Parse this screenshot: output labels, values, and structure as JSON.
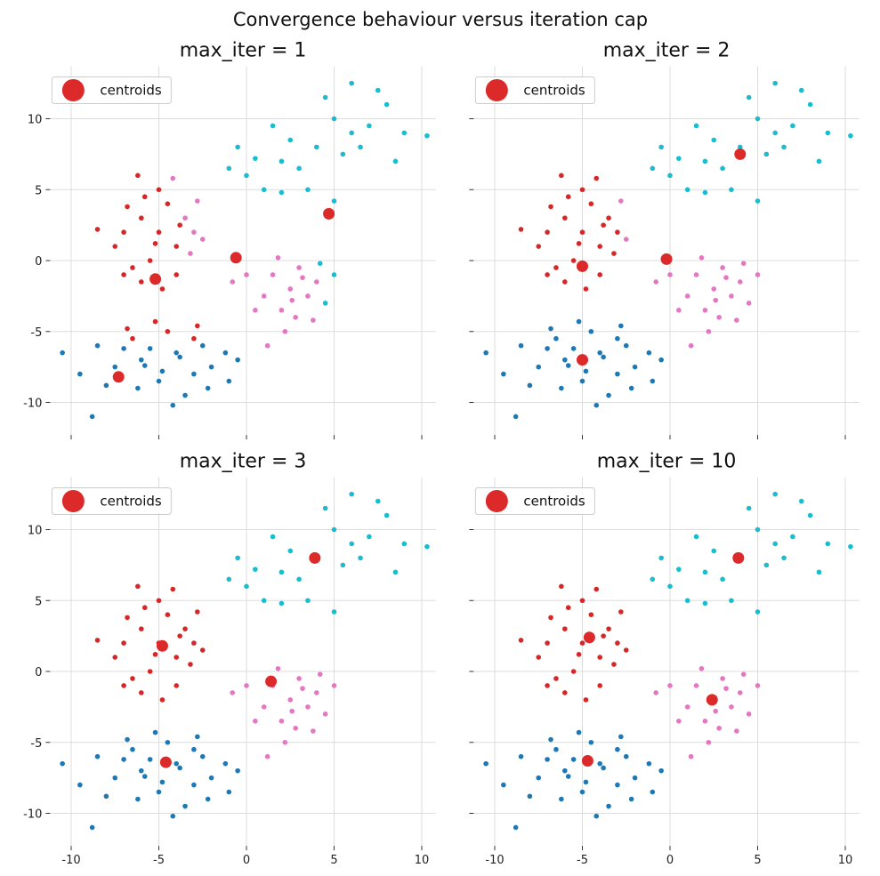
{
  "chart_data": {
    "type": "scatter",
    "title": "Convergence behaviour versus iteration cap",
    "xlim": [
      -11.2,
      10.8
    ],
    "ylim": [
      -12.3,
      13.7
    ],
    "xticks": [
      -10,
      -5,
      0,
      5,
      10
    ],
    "yticks": [
      -10,
      -5,
      0,
      5,
      10
    ],
    "grid": true,
    "legend_placement": "upper-left",
    "legend_label": "centroids",
    "colors": {
      "cluster": [
        "#1f77b4",
        "#d62728",
        "#e377c2",
        "#17becf"
      ],
      "centroid": "#dc2a2a",
      "grid": "#dddddd"
    },
    "points": [
      [
        -4,
        -6.5
      ],
      [
        -6,
        -7
      ],
      [
        -2.5,
        -6
      ],
      [
        -5,
        -8.5
      ],
      [
        -3,
        -8
      ],
      [
        -7.5,
        -7.5
      ],
      [
        -8.5,
        -6
      ],
      [
        -4.5,
        -5
      ],
      [
        -2,
        -7.5
      ],
      [
        -1.2,
        -6.5
      ],
      [
        -6.5,
        -5.5
      ],
      [
        -3.5,
        -9.5
      ],
      [
        -5.5,
        -6.2
      ],
      [
        -9.5,
        -8
      ],
      [
        -10.5,
        -6.5
      ],
      [
        -3,
        -5.5
      ],
      [
        -4.8,
        -7.8
      ],
      [
        -6.2,
        -9
      ],
      [
        -2.2,
        -9
      ],
      [
        -7,
        -6.2
      ],
      [
        -1,
        -8.5
      ],
      [
        -5.2,
        -4.3
      ],
      [
        -3.8,
        -6.8
      ],
      [
        -8,
        -8.8
      ],
      [
        -0.5,
        -7
      ],
      [
        -4.2,
        -10.2
      ],
      [
        -6.8,
        -4.8
      ],
      [
        -2.8,
        -4.6
      ],
      [
        -8.8,
        -11
      ],
      [
        -5.8,
        -7.4
      ],
      [
        -5,
        2
      ],
      [
        -6,
        3
      ],
      [
        -4,
        1
      ],
      [
        -5.5,
        0
      ],
      [
        -3.5,
        3
      ],
      [
        -7,
        2
      ],
      [
        -6.5,
        -0.5
      ],
      [
        -4.5,
        4
      ],
      [
        -5,
        5
      ],
      [
        -3,
        2
      ],
      [
        -7.5,
        1
      ],
      [
        -6,
        -1.5
      ],
      [
        -4,
        -1
      ],
      [
        -5.8,
        4.5
      ],
      [
        -3.2,
        0.5
      ],
      [
        -8.5,
        2.2
      ],
      [
        -4.8,
        -2
      ],
      [
        -6.2,
        6
      ],
      [
        -2.8,
        4.2
      ],
      [
        -5.2,
        1.2
      ],
      [
        -7,
        -1
      ],
      [
        -3.8,
        2.5
      ],
      [
        -4.2,
        5.8
      ],
      [
        -6.8,
        3.8
      ],
      [
        -2.5,
        1.5
      ],
      [
        2.5,
        -2
      ],
      [
        1.5,
        -1
      ],
      [
        3.5,
        -2.5
      ],
      [
        2,
        -3.5
      ],
      [
        3,
        -0.5
      ],
      [
        1,
        -2.5
      ],
      [
        4,
        -1.5
      ],
      [
        2.8,
        -4
      ],
      [
        0,
        -1
      ],
      [
        4.5,
        -3
      ],
      [
        1.8,
        0.2
      ],
      [
        3.2,
        -1.2
      ],
      [
        2.2,
        -5
      ],
      [
        0.5,
        -3.5
      ],
      [
        5,
        -1
      ],
      [
        3.8,
        -4.2
      ],
      [
        -0.8,
        -1.5
      ],
      [
        1.2,
        -6
      ],
      [
        2.6,
        -2.8
      ],
      [
        4.2,
        -0.2
      ],
      [
        4,
        8
      ],
      [
        2,
        7
      ],
      [
        6,
        9
      ],
      [
        0,
        6
      ],
      [
        1,
        5
      ],
      [
        3,
        6.5
      ],
      [
        5,
        10
      ],
      [
        7,
        9.5
      ],
      [
        8,
        11
      ],
      [
        6.5,
        8
      ],
      [
        2.5,
        8.5
      ],
      [
        -1,
        6.5
      ],
      [
        4.5,
        11.5
      ],
      [
        9,
        9
      ],
      [
        -0.5,
        8
      ],
      [
        3.5,
        5
      ],
      [
        7.5,
        12
      ],
      [
        5.5,
        7.5
      ],
      [
        1.5,
        9.5
      ],
      [
        8.5,
        7
      ],
      [
        10.3,
        8.8
      ],
      [
        6,
        12.5
      ],
      [
        0.5,
        7.2
      ],
      [
        2,
        4.8
      ],
      [
        5,
        4.2
      ]
    ],
    "subplots": [
      {
        "title": "max_iter = 1",
        "labels": [
          0,
          0,
          0,
          0,
          0,
          0,
          0,
          1,
          0,
          0,
          1,
          0,
          0,
          0,
          0,
          1,
          0,
          0,
          0,
          0,
          0,
          1,
          0,
          0,
          0,
          0,
          1,
          1,
          0,
          0,
          1,
          1,
          1,
          1,
          2,
          1,
          1,
          1,
          1,
          2,
          1,
          1,
          1,
          1,
          2,
          1,
          1,
          1,
          2,
          1,
          1,
          1,
          2,
          1,
          2,
          2,
          2,
          2,
          2,
          2,
          2,
          2,
          2,
          2,
          3,
          2,
          2,
          2,
          2,
          3,
          2,
          2,
          2,
          2,
          3,
          3,
          3,
          3,
          3,
          3,
          3,
          3,
          3,
          3,
          3,
          3,
          3,
          3,
          3,
          3,
          3,
          3,
          3,
          3,
          3,
          3,
          3,
          3,
          3,
          3
        ],
        "centroids": [
          [
            -0.6,
            0.2
          ],
          [
            4.7,
            3.3
          ],
          [
            -5.2,
            -1.3
          ],
          [
            -7.3,
            -8.2
          ]
        ]
      },
      {
        "title": "max_iter = 2",
        "labels": [
          0,
          0,
          0,
          0,
          0,
          0,
          0,
          0,
          0,
          0,
          0,
          0,
          0,
          0,
          0,
          0,
          0,
          0,
          0,
          0,
          0,
          0,
          0,
          0,
          0,
          0,
          0,
          0,
          0,
          0,
          1,
          1,
          1,
          1,
          1,
          1,
          1,
          1,
          1,
          1,
          1,
          1,
          1,
          1,
          1,
          1,
          1,
          1,
          2,
          1,
          1,
          1,
          1,
          1,
          2,
          2,
          2,
          2,
          2,
          2,
          2,
          2,
          2,
          2,
          2,
          2,
          2,
          2,
          2,
          2,
          2,
          2,
          2,
          2,
          2,
          3,
          3,
          3,
          3,
          3,
          3,
          3,
          3,
          3,
          3,
          3,
          3,
          3,
          3,
          3,
          3,
          3,
          3,
          3,
          3,
          3,
          3,
          3,
          3,
          3
        ],
        "centroids": [
          [
            4,
            7.5
          ],
          [
            -0.2,
            0.1
          ],
          [
            -5,
            -0.4
          ],
          [
            -5,
            -7
          ]
        ]
      },
      {
        "title": "max_iter = 3",
        "labels": [
          0,
          0,
          0,
          0,
          0,
          0,
          0,
          0,
          0,
          0,
          0,
          0,
          0,
          0,
          0,
          0,
          0,
          0,
          0,
          0,
          0,
          0,
          0,
          0,
          0,
          0,
          0,
          0,
          0,
          0,
          1,
          1,
          1,
          1,
          1,
          1,
          1,
          1,
          1,
          1,
          1,
          1,
          1,
          1,
          1,
          1,
          1,
          1,
          1,
          1,
          1,
          1,
          1,
          1,
          1,
          2,
          2,
          2,
          2,
          2,
          2,
          2,
          2,
          2,
          2,
          2,
          2,
          2,
          2,
          2,
          2,
          2,
          2,
          2,
          2,
          3,
          3,
          3,
          3,
          3,
          3,
          3,
          3,
          3,
          3,
          3,
          3,
          3,
          3,
          3,
          3,
          3,
          3,
          3,
          3,
          3,
          3,
          3,
          3,
          3
        ],
        "centroids": [
          [
            3.9,
            8
          ],
          [
            1.4,
            -0.7
          ],
          [
            -4.8,
            1.8
          ],
          [
            -4.6,
            -6.4
          ]
        ]
      },
      {
        "title": "max_iter = 10",
        "labels": [
          0,
          0,
          0,
          0,
          0,
          0,
          0,
          0,
          0,
          0,
          0,
          0,
          0,
          0,
          0,
          0,
          0,
          0,
          0,
          0,
          0,
          0,
          0,
          0,
          0,
          0,
          0,
          0,
          0,
          0,
          1,
          1,
          1,
          1,
          1,
          1,
          1,
          1,
          1,
          1,
          1,
          1,
          1,
          1,
          1,
          1,
          1,
          1,
          1,
          1,
          1,
          1,
          1,
          1,
          1,
          2,
          2,
          2,
          2,
          2,
          2,
          2,
          2,
          2,
          2,
          2,
          2,
          2,
          2,
          2,
          2,
          2,
          2,
          2,
          2,
          3,
          3,
          3,
          3,
          3,
          3,
          3,
          3,
          3,
          3,
          3,
          3,
          3,
          3,
          3,
          3,
          3,
          3,
          3,
          3,
          3,
          3,
          3,
          3,
          3
        ],
        "centroids": [
          [
            3.9,
            8
          ],
          [
            2.4,
            -2
          ],
          [
            -4.6,
            2.4
          ],
          [
            -4.7,
            -6.3
          ]
        ]
      }
    ]
  }
}
